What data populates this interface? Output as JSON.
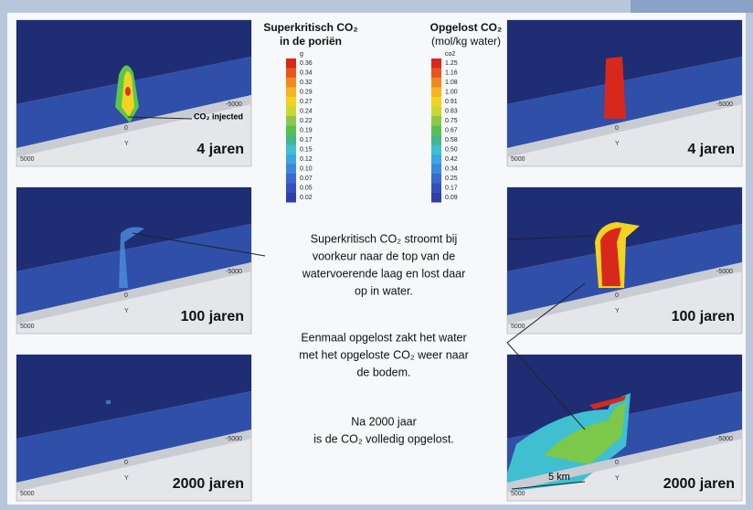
{
  "legends": [
    {
      "title": [
        "Superkritisch CO₂",
        "in de poriën"
      ],
      "unit": "g",
      "values": [
        "0.36",
        "0.34",
        "0.32",
        "0.29",
        "0.27",
        "0.24",
        "0.22",
        "0.19",
        "0.17",
        "0.15",
        "0.12",
        "0.10",
        "0.07",
        "0.05",
        "0.02"
      ]
    },
    {
      "title": [
        "Opgelost CO₂",
        "(mol/kg water)"
      ],
      "unit": "co2",
      "values": [
        "1.25",
        "1.16",
        "1.08",
        "1.00",
        "0.91",
        "0.83",
        "0.75",
        "0.67",
        "0.58",
        "0.50",
        "0.42",
        "0.34",
        "0.25",
        "0.17",
        "0.09"
      ]
    }
  ],
  "panels": [
    {
      "time": "4 jaren",
      "x_left": "5000",
      "x_right": "-5000",
      "x_mid": "0",
      "axis": "Y"
    },
    {
      "time": "100 jaren",
      "x_left": "5000",
      "x_right": "-5000",
      "x_mid": "0",
      "axis": "Y"
    },
    {
      "time": "2000 jaren",
      "x_left": "5000",
      "x_right": "-5000",
      "x_mid": "0",
      "axis": "Y"
    },
    {
      "time": "4 jaren",
      "x_left": "5000",
      "x_right": "-5000",
      "x_mid": "0",
      "axis": "Y"
    },
    {
      "time": "100 jaren",
      "x_left": "5000",
      "x_right": "-5000",
      "x_mid": "0",
      "axis": "Y"
    },
    {
      "time": "2000 jaren",
      "x_left": "5000",
      "x_right": "-5000",
      "x_mid": "0",
      "axis": "Y"
    }
  ],
  "annotation": "CO₂ injected",
  "scale": "5 km",
  "text": [
    [
      "Superkritisch CO₂ stroomt bij",
      "voorkeur naar de top van de",
      "watervoerende laag en lost daar",
      "op in water."
    ],
    [
      "Eenmaal opgelost zakt het water",
      "met het opgeloste CO₂ weer naar",
      "de bodem."
    ],
    [
      "Na 2000 jaar",
      "is de CO₂ volledig opgelost."
    ]
  ]
}
